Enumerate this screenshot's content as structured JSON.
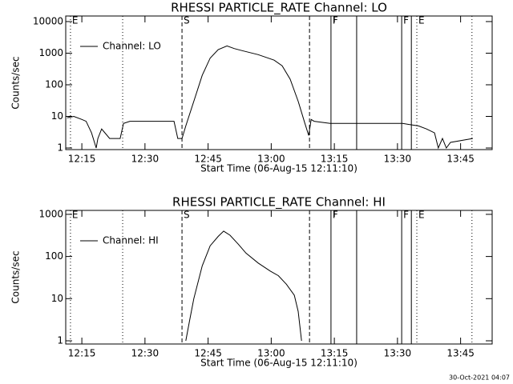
{
  "chart_data": [
    {
      "type": "line",
      "title": "RHESSI PARTICLE_RATE Channel: LO",
      "x_label": "Start Time (06-Aug-15 12:11:10)",
      "y_label": "Counts/sec",
      "log_y": true,
      "legend": "top-left",
      "xlim": [
        11.17,
        112.5
      ],
      "xticks": [
        {
          "value": 15,
          "label": "12:15"
        },
        {
          "value": 30,
          "label": "12:30"
        },
        {
          "value": 45,
          "label": "12:45"
        },
        {
          "value": 60,
          "label": "13:00"
        },
        {
          "value": 75,
          "label": "13:15"
        },
        {
          "value": 90,
          "label": "13:30"
        },
        {
          "value": 105,
          "label": "13:45"
        }
      ],
      "ylim": [
        0.89,
        15000
      ],
      "yticks": [
        1,
        10,
        100,
        1000,
        10000
      ],
      "events": [
        {
          "x": 12.3,
          "label": "E",
          "style": "dotted"
        },
        {
          "x": 24.7,
          "style": "dotted"
        },
        {
          "x": 38.8,
          "label": "S",
          "style": "dashed"
        },
        {
          "x": 69.1,
          "style": "dashed"
        },
        {
          "x": 74.2,
          "label": "F",
          "style": "solid"
        },
        {
          "x": 80.3,
          "style": "solid"
        },
        {
          "x": 91.0,
          "label": "F",
          "style": "solid"
        },
        {
          "x": 93.3,
          "style": "solid"
        },
        {
          "x": 94.6,
          "label": "E",
          "style": "dotted"
        },
        {
          "x": 107.7,
          "style": "dotted"
        }
      ],
      "series": [
        {
          "name": "Channel: LO",
          "color": "#000000",
          "x": [
            11.5,
            13.1,
            15.0,
            16.0,
            17.3,
            18.4,
            18.8,
            19.7,
            21.6,
            24.1,
            24.9,
            26.4,
            30.2,
            34.0,
            36.9,
            37.8,
            38.8,
            39.7,
            41.6,
            43.6,
            45.5,
            47.4,
            49.5,
            51.2,
            53.1,
            56.9,
            60.7,
            62.6,
            64.5,
            66.4,
            68.0,
            68.9,
            69.5,
            70.2,
            74.0,
            79.7,
            85.5,
            91.2,
            95.0,
            96.9,
            98.8,
            99.7,
            100.7,
            101.6,
            102.6,
            107.9
          ],
          "values": [
            9,
            10,
            8,
            7,
            3,
            1,
            2,
            4,
            2,
            2,
            6,
            7,
            7,
            7,
            7,
            2,
            2,
            5,
            30,
            200,
            700,
            1300,
            1700,
            1400,
            1200,
            900,
            600,
            400,
            150,
            30,
            6,
            2.5,
            8,
            7,
            6,
            6,
            6,
            6,
            5,
            4,
            3,
            1,
            2,
            1,
            1.5,
            2
          ]
        }
      ]
    },
    {
      "type": "line",
      "title": "RHESSI PARTICLE_RATE Channel: HI",
      "x_label": "Start Time (06-Aug-15 12:11:10)",
      "y_label": "Counts/sec",
      "log_y": true,
      "legend": "top-left",
      "xlim": [
        11.17,
        112.5
      ],
      "xticks": [
        {
          "value": 15,
          "label": "12:15"
        },
        {
          "value": 30,
          "label": "12:30"
        },
        {
          "value": 45,
          "label": "12:45"
        },
        {
          "value": 60,
          "label": "13:00"
        },
        {
          "value": 75,
          "label": "13:15"
        },
        {
          "value": 90,
          "label": "13:30"
        },
        {
          "value": 105,
          "label": "13:45"
        }
      ],
      "ylim": [
        0.84,
        1240
      ],
      "yticks": [
        1,
        10,
        100,
        1000
      ],
      "events": [
        {
          "x": 12.3,
          "label": "E",
          "style": "dotted"
        },
        {
          "x": 24.7,
          "style": "dotted"
        },
        {
          "x": 38.8,
          "label": "S",
          "style": "dashed"
        },
        {
          "x": 69.1,
          "style": "dashed"
        },
        {
          "x": 74.2,
          "label": "F",
          "style": "solid"
        },
        {
          "x": 80.3,
          "style": "solid"
        },
        {
          "x": 91.0,
          "label": "F",
          "style": "solid"
        },
        {
          "x": 93.3,
          "style": "solid"
        },
        {
          "x": 94.6,
          "label": "E",
          "style": "dotted"
        },
        {
          "x": 107.7,
          "style": "dotted"
        }
      ],
      "series": [
        {
          "name": "Channel: HI",
          "color": "#000000",
          "x": [
            39.7,
            40.6,
            41.6,
            43.6,
            45.5,
            47.4,
            48.7,
            50.2,
            52.1,
            54.0,
            56.9,
            59.8,
            61.7,
            63.6,
            65.5,
            66.4,
            67.2
          ],
          "values": [
            1,
            3,
            10,
            60,
            180,
            300,
            400,
            320,
            200,
            120,
            70,
            45,
            35,
            22,
            12,
            5,
            1
          ]
        }
      ]
    }
  ],
  "footer": "30-Oct-2021 04:07"
}
